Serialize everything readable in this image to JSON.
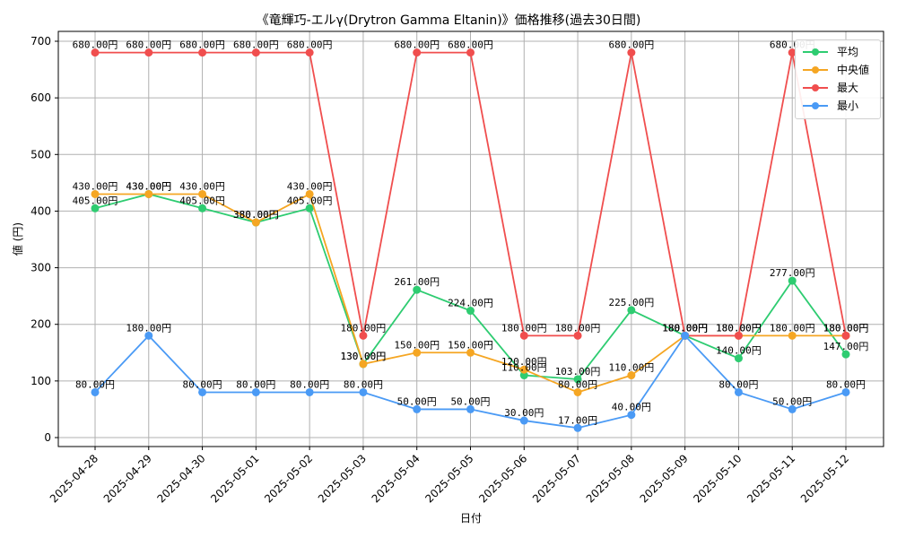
{
  "chart_data": {
    "type": "line",
    "title": "《竜輝巧-エルγ(Drytron Gamma Eltanin)》価格推移(過去30日間)",
    "xlabel": "日付",
    "ylabel": "値 (円)",
    "ylim": [
      0,
      700
    ],
    "yticks": [
      0,
      100,
      200,
      300,
      400,
      500,
      600,
      700
    ],
    "grid": true,
    "legend_position": "top-right",
    "value_suffix": "円",
    "categories": [
      "2025-04-28",
      "2025-04-29",
      "2025-04-30",
      "2025-05-01",
      "2025-05-02",
      "2025-05-03",
      "2025-05-04",
      "2025-05-05",
      "2025-05-06",
      "2025-05-07",
      "2025-05-08",
      "2025-05-09",
      "2025-05-10",
      "2025-05-11",
      "2025-05-12"
    ],
    "series": [
      {
        "name": "平均",
        "color": "#2ecc71",
        "values": [
          405,
          430,
          405,
          380,
          405,
          130,
          261,
          224,
          110,
          103,
          225,
          180,
          140,
          277,
          147
        ]
      },
      {
        "name": "中央値",
        "color": "#f5a623",
        "values": [
          430,
          430,
          430,
          380,
          430,
          130,
          150,
          150,
          120,
          80,
          110,
          180,
          180,
          180,
          180
        ]
      },
      {
        "name": "最大",
        "color": "#f04e4e",
        "values": [
          680,
          680,
          680,
          680,
          680,
          180,
          680,
          680,
          180,
          180,
          680,
          180,
          180,
          680,
          180
        ]
      },
      {
        "name": "最小",
        "color": "#4a9af5",
        "values": [
          80,
          180,
          80,
          80,
          80,
          80,
          50,
          50,
          30,
          17,
          40,
          180,
          80,
          50,
          80
        ]
      }
    ]
  }
}
